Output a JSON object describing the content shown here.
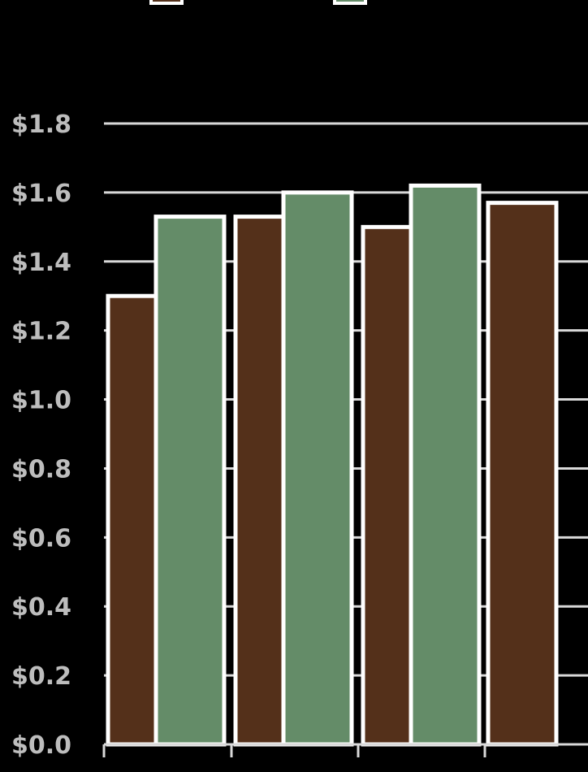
{
  "chart_data": {
    "type": "bar",
    "title": "",
    "xlabel": "",
    "ylabel": "",
    "categories": [
      "",
      "",
      "",
      ""
    ],
    "series": [
      {
        "color": "#54301a",
        "values": [
          1.3,
          1.53,
          1.5,
          1.57
        ]
      },
      {
        "color": "#648c68",
        "values": [
          1.53,
          1.6,
          1.62,
          null
        ]
      }
    ],
    "ylim": [
      0,
      1.8
    ],
    "yticks": [
      {
        "value": 0.0,
        "label": "$0.0"
      },
      {
        "value": 0.2,
        "label": "$0.2"
      },
      {
        "value": 0.4,
        "label": "$0.4"
      },
      {
        "value": 0.6,
        "label": "$0.6"
      },
      {
        "value": 0.8,
        "label": "$0.8"
      },
      {
        "value": 1.0,
        "label": "$1.0"
      },
      {
        "value": 1.2,
        "label": "$1.2"
      },
      {
        "value": 1.4,
        "label": "$1.4"
      },
      {
        "value": 1.6,
        "label": "$1.6"
      },
      {
        "value": 1.8,
        "label": "$1.8"
      }
    ],
    "grid": true,
    "colors": {
      "background": "#000000",
      "gridline": "#d9d9d9",
      "bar_border": "#ffffff",
      "tick_text": "#bdbdbd"
    }
  }
}
